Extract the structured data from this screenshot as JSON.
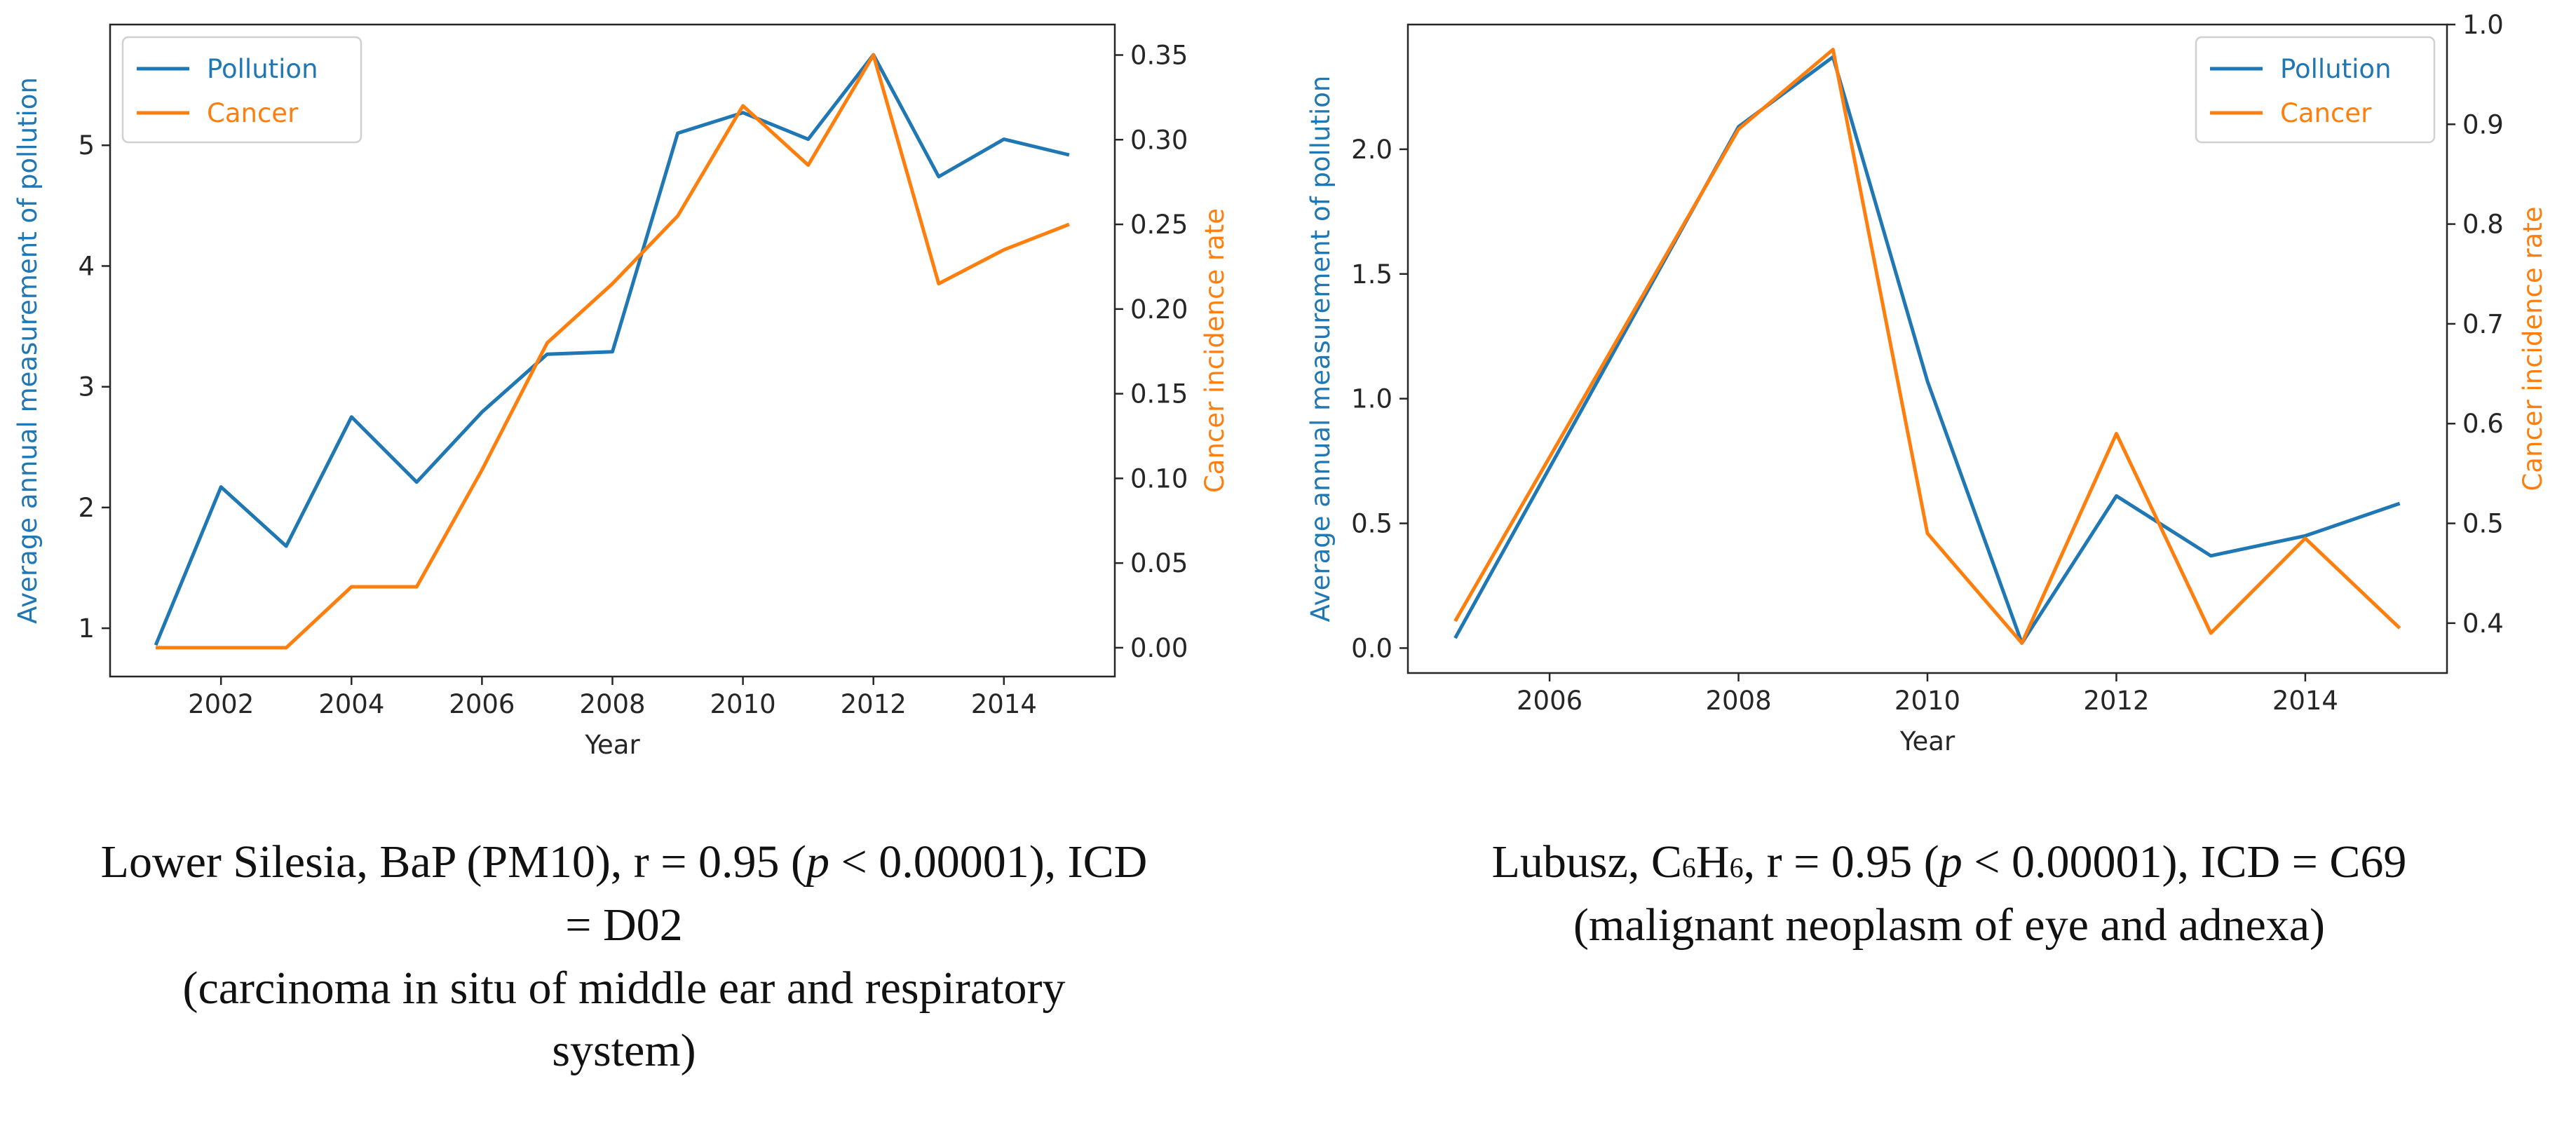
{
  "colors": {
    "pollution": "#1f77b4",
    "cancer": "#ff7f0e",
    "axis": "#262626"
  },
  "chart_data": [
    {
      "type": "line",
      "xlabel": "Year",
      "ylabel_left": "Average annual measurement of pollution",
      "ylabel_right": "Cancer incidence rate",
      "legend_position": "top-left",
      "xlim": [
        2000.3,
        2015.7
      ],
      "ylim_left": [
        0.6,
        6.0
      ],
      "ylim_right": [
        -0.017,
        0.368
      ],
      "x_ticks": [
        2002,
        2004,
        2006,
        2008,
        2010,
        2012,
        2014
      ],
      "y_left_ticks": [
        1,
        2,
        3,
        4,
        5
      ],
      "y_right_ticks": [
        "0.00",
        "0.05",
        "0.10",
        "0.15",
        "0.20",
        "0.25",
        "0.30",
        "0.35"
      ],
      "x": [
        2001,
        2002,
        2003,
        2004,
        2005,
        2006,
        2007,
        2008,
        2009,
        2010,
        2011,
        2012,
        2013,
        2014,
        2015
      ],
      "series": [
        {
          "name": "Pollution",
          "axis": "left",
          "values": [
            0.86,
            2.17,
            1.68,
            2.75,
            2.21,
            2.79,
            3.27,
            3.29,
            5.1,
            5.27,
            5.05,
            5.75,
            4.74,
            5.05,
            4.92
          ]
        },
        {
          "name": "Cancer",
          "axis": "right",
          "values": [
            0.0,
            0.0,
            0.0,
            0.036,
            0.036,
            0.105,
            0.18,
            0.215,
            0.255,
            0.32,
            0.285,
            0.35,
            0.215,
            0.235,
            0.25
          ]
        }
      ]
    },
    {
      "type": "line",
      "xlabel": "Year",
      "ylabel_left": "Average annual measurement of pollution",
      "ylabel_right": "Cancer incidence rate",
      "legend_position": "top-right",
      "xlim": [
        2004.5,
        2015.5
      ],
      "ylim_left": [
        -0.1,
        2.5
      ],
      "ylim_right": [
        0.35,
        1.0
      ],
      "x_ticks": [
        2006,
        2008,
        2010,
        2012,
        2014
      ],
      "y_left_ticks": [
        "0.0",
        "0.5",
        "1.0",
        "1.5",
        "2.0"
      ],
      "y_right_ticks": [
        "0.4",
        "0.5",
        "0.6",
        "0.7",
        "0.8",
        "0.9",
        "1.0"
      ],
      "x": [
        2005,
        2008,
        2009,
        2010,
        2011,
        2012,
        2013,
        2014,
        2015
      ],
      "series": [
        {
          "name": "Pollution",
          "axis": "left",
          "values": [
            0.04,
            2.09,
            2.37,
            1.07,
            0.02,
            0.61,
            0.37,
            0.45,
            0.58
          ]
        },
        {
          "name": "Cancer",
          "axis": "right",
          "values": [
            0.402,
            0.895,
            0.975,
            0.49,
            0.38,
            0.59,
            0.39,
            0.485,
            0.395
          ]
        }
      ]
    }
  ],
  "captions": {
    "left": {
      "line1_pre": "Lower Silesia, BaP (PM10), r = 0.95 (",
      "line1_p": "p",
      "line1_post": " < 0.00001), ICD",
      "line2": "= D02",
      "line3": "(carcinoma in situ of middle ear and respiratory",
      "line4": "system)"
    },
    "right": {
      "line1_pre": "Lubusz, C",
      "sub1": "6",
      "mid": "H",
      "sub2": "6",
      "line1_rest": ", r = 0.95 (",
      "line1_p": "p",
      "line1_post": " < 0.00001), ICD = C69",
      "line2": "(malignant neoplasm of eye and adnexa)"
    }
  }
}
